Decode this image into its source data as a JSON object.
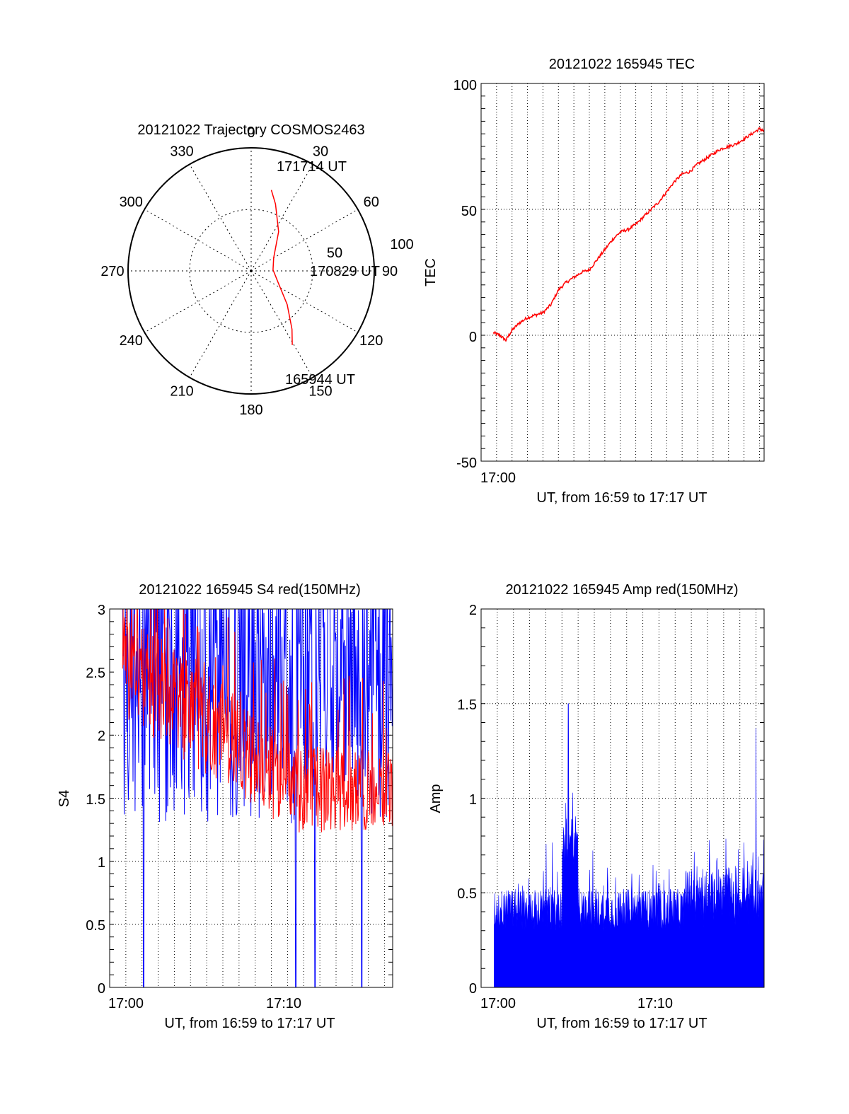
{
  "chart_data": [
    {
      "type": "polar",
      "title": "20121022 Trajectory COSMOS2463",
      "azimuth_labels": [
        "0",
        "30",
        "60",
        "90",
        "120",
        "150",
        "180",
        "210",
        "240",
        "270",
        "300",
        "330"
      ],
      "radial_labels": [
        "50",
        "100"
      ],
      "trajectory": {
        "color": "#ff0000",
        "points": [
          {
            "az": 14,
            "el": 29
          },
          {
            "az": 20,
            "el": 38
          },
          {
            "az": 35,
            "el": 55
          },
          {
            "az": 60,
            "el": 71
          },
          {
            "az": 87,
            "el": 74
          },
          {
            "az": 112,
            "el": 69
          },
          {
            "az": 133,
            "el": 54
          },
          {
            "az": 145,
            "el": 38
          },
          {
            "az": 151,
            "el": 28
          }
        ]
      },
      "annotations": [
        "171714 UT",
        "170829 UT",
        "165944 UT"
      ]
    },
    {
      "type": "line",
      "title": "20121022 165945 TEC",
      "xlabel": "UT, from 16:59 to 17:17 UT",
      "ylabel": "TEC",
      "xlim": [
        0,
        18.3
      ],
      "ylim": [
        -50,
        100
      ],
      "x_tick_labels": [
        "17:00"
      ],
      "y_tick_labels": [
        "100",
        "50",
        "0",
        "-50"
      ],
      "series": [
        {
          "color": "#ff0000",
          "x": [
            0.8,
            1.2,
            1.6,
            2.0,
            2.5,
            3.0,
            3.5,
            4.0,
            4.5,
            5.0,
            5.5,
            6.0,
            6.5,
            7.0,
            7.5,
            8.0,
            8.5,
            9.0,
            9.5,
            10.0,
            10.5,
            11.0,
            11.5,
            12.0,
            12.5,
            13.0,
            13.5,
            14.0,
            14.5,
            15.0,
            15.5,
            16.0,
            16.5,
            17.0,
            17.5,
            18.0,
            18.3
          ],
          "y": [
            1,
            0,
            -2,
            2,
            5,
            7,
            8,
            9,
            12,
            18,
            21,
            23,
            25,
            26,
            30,
            34,
            38,
            41,
            42,
            44,
            47,
            50,
            53,
            57,
            61,
            64,
            65,
            68,
            70,
            72,
            74,
            75,
            76,
            78,
            80,
            82,
            81
          ]
        }
      ]
    },
    {
      "type": "line",
      "title": "20121022 165945 S4 red(150MHz)",
      "xlabel": "UT, from 16:59 to 17:17 UT",
      "ylabel": "S4",
      "xlim": [
        0,
        17.5
      ],
      "ylim": [
        0,
        3
      ],
      "x_tick_labels": [
        "17:00",
        "17:10"
      ],
      "y_tick_labels": [
        "3",
        "2.5",
        "2",
        "1.5",
        "1",
        "0.5",
        "0"
      ],
      "series": [
        {
          "color": "#0000ff",
          "note": "noisy high-amplitude signal, frequently saturating at 3 with occasional drops to 0",
          "level_range": [
            1.4,
            3.0
          ],
          "dropouts_x": [
            2.1,
            11.5,
            12.7,
            15.6
          ]
        },
        {
          "color": "#ff0000",
          "note": "noisy signal decreasing from ~2.5 to ~1.5",
          "start_level": 2.5,
          "end_level": 1.5
        }
      ]
    },
    {
      "type": "bar",
      "title": "20121022 165945 Amp red(150MHz)",
      "xlabel": "UT, from 16:59 to 17:17 UT",
      "ylabel": "Amp",
      "xlim": [
        0,
        17.5
      ],
      "ylim": [
        0,
        2
      ],
      "x_tick_labels": [
        "17:00",
        "17:10"
      ],
      "y_tick_labels": [
        "2",
        "1.5",
        "1",
        "0.5",
        "0"
      ],
      "series": [
        {
          "color": "#0000ff",
          "baseline": 0.42,
          "peaks": [
            {
              "x": 5.4,
              "y": 1.5
            },
            {
              "x": 17.0,
              "y": 1.37
            }
          ]
        }
      ]
    }
  ]
}
